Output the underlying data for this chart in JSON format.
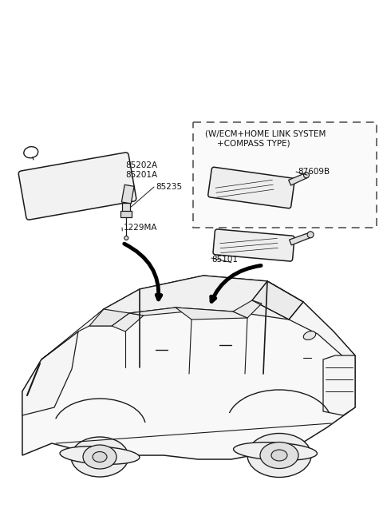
{
  "background_color": "#ffffff",
  "part_color": "#1a1a1a",
  "parts": {
    "sunvisor": {
      "label_top": "85202A",
      "label_mid": "85201A",
      "label_clip": "85235",
      "label_bolt": "1229MA"
    },
    "mirror_standard": {
      "label": "85101"
    },
    "mirror_ecm": {
      "label": "87609B",
      "box_label_line1": "(W/ECM+HOME LINK SYSTEM",
      "box_label_line2": "+COMPASS TYPE)"
    }
  },
  "layout": {
    "figsize": [
      4.8,
      6.56
    ],
    "dpi": 100,
    "xlim": [
      0,
      480
    ],
    "ylim": [
      656,
      0
    ]
  }
}
